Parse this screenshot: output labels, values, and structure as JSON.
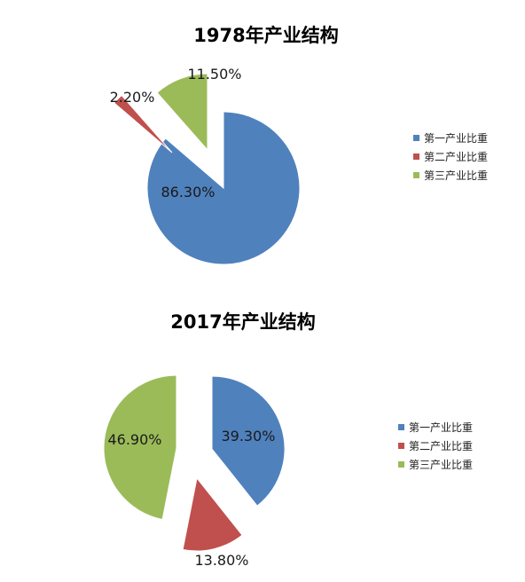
{
  "chart_data": [
    {
      "type": "pie",
      "title": "1978年产业结构",
      "categories": [
        "第一产业比重",
        "第二产业比重",
        "第三产业比重"
      ],
      "values": [
        86.3,
        2.2,
        11.5
      ],
      "data_labels": [
        "86.30%",
        "2.20%",
        "11.50%"
      ],
      "colors": [
        "#4F81BD",
        "#C0504D",
        "#9BBB59"
      ],
      "exploded": true,
      "legend_position": "right"
    },
    {
      "type": "pie",
      "title": "2017年产业结构",
      "categories": [
        "第一产业比重",
        "第二产业比重",
        "第三产业比重"
      ],
      "values": [
        39.3,
        13.8,
        46.9
      ],
      "data_labels": [
        "39.30%",
        "13.80%",
        "46.90%"
      ],
      "colors": [
        "#4F81BD",
        "#C0504D",
        "#9BBB59"
      ],
      "exploded": true,
      "legend_position": "right"
    }
  ]
}
